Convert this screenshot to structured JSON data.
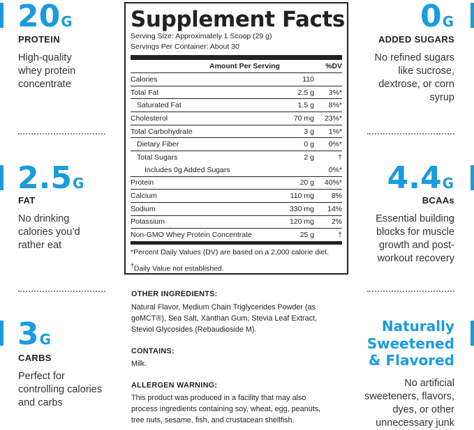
{
  "left": [
    {
      "num": "20",
      "unit": "G",
      "label": "PROTEIN",
      "desc": [
        "High-quality",
        "whey protein",
        "concentrate"
      ]
    },
    {
      "num": "2.5",
      "unit": "G",
      "label": "FAT",
      "desc": [
        "No drinking",
        "calories you’d",
        "rather eat"
      ]
    },
    {
      "num": "3",
      "unit": "G",
      "label": "CARBS",
      "desc": [
        "Perfect for",
        "controlling calories",
        "and carbs"
      ]
    }
  ],
  "right": [
    {
      "num": "0",
      "unit": "G",
      "label": "ADDED SUGARS",
      "desc": [
        "No refined sugars",
        "like sucrose,",
        "dextrose, or corn",
        "syrup"
      ]
    },
    {
      "num": "4.4",
      "unit": "G",
      "label": "BCAAs",
      "desc": [
        "Essential building",
        "blocks for muscle",
        "growth and post-",
        "workout recovery"
      ]
    },
    {
      "headline": [
        "Naturally",
        "Sweetened",
        "& Flavored"
      ],
      "desc": [
        "No artificial",
        "sweeteners, flavors,",
        "dyes, or other",
        "unnecessary junk"
      ]
    }
  ],
  "facts": {
    "title": "Supplement Facts",
    "serving_size": "Serving Size: Approximately 1 Scoop (29 g)",
    "servings_per": "Servings Per Container: About 30",
    "col_amount": "Amount Per Serving",
    "col_dv": "%DV",
    "rows": [
      {
        "name": "Calories",
        "amount": "110",
        "dv": ""
      },
      {
        "name": "Total Fat",
        "amount": "2.5 g",
        "dv": "3%*"
      },
      {
        "name": "Saturated Fat",
        "amount": "1.5 g",
        "dv": "8%*"
      },
      {
        "name": "Cholesterol",
        "amount": "70 mg",
        "dv": "23%*"
      },
      {
        "name": "Total Carbohydrate",
        "amount": "3 g",
        "dv": "1%*"
      },
      {
        "name": "Dietary Fiber",
        "amount": "0 g",
        "dv": "0%*"
      },
      {
        "name": "Total Sugars",
        "amount": "2 g",
        "dv": "†"
      },
      {
        "name": "Includes 0g Added Sugars",
        "amount": "",
        "dv": "0%*"
      },
      {
        "name": "Protein",
        "amount": "20 g",
        "dv": "40%*"
      },
      {
        "name": "Calcium",
        "amount": "110 mg",
        "dv": "8%"
      },
      {
        "name": "Sodium",
        "amount": "330 mg",
        "dv": "14%"
      },
      {
        "name": "Potassium",
        "amount": "120 mg",
        "dv": "2%"
      },
      {
        "name": "Non-GMO Whey Protein Concentrate",
        "amount": "25 g",
        "dv": "†"
      }
    ],
    "footnote1": "*Percent Daily Values (DV) are based on a 2,000 calorie diet.",
    "footnote2_mark": "†",
    "footnote2": "Daily Value not established."
  },
  "ingredients": {
    "other_h": "OTHER INGREDIENTS:",
    "other": [
      "Natural Flavor, Medium Chain Triglycerides Powder (as",
      "goMCT®), Sea Salt, Xanthan Gum, Stevia Leaf Extract,",
      "Steviol Glycosides (Rebaudioside M)."
    ],
    "contains_h": "CONTAINS:",
    "contains": "Milk.",
    "allergen_h": "ALLERGEN WARNING:",
    "allergen": [
      "This product was produced in a facility that may also",
      "process ingredients containing soy, wheat, egg, peanuts,",
      "tree nuts, sesame, fish, and crustacean shellfish."
    ]
  }
}
